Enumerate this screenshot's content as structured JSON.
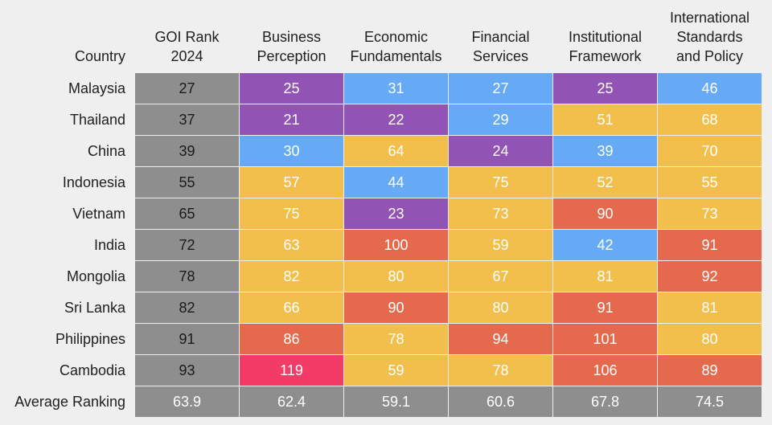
{
  "chart_data": {
    "type": "heatmap",
    "corner_label": "Country",
    "columns": [
      "GOI Rank\n2024",
      "Business\nPerception",
      "Economic\nFundamentals",
      "Financial\nServices",
      "Institutional\nFramework",
      "International\nStandards\nand Policy"
    ],
    "rows": [
      {
        "country": "Malaysia",
        "values": [
          27,
          25,
          31,
          27,
          25,
          46
        ]
      },
      {
        "country": "Thailand",
        "values": [
          37,
          21,
          22,
          29,
          51,
          68
        ]
      },
      {
        "country": "China",
        "values": [
          39,
          30,
          64,
          24,
          39,
          70
        ]
      },
      {
        "country": "Indonesia",
        "values": [
          55,
          57,
          44,
          75,
          52,
          55
        ]
      },
      {
        "country": "Vietnam",
        "values": [
          65,
          75,
          23,
          73,
          90,
          73
        ]
      },
      {
        "country": "India",
        "values": [
          72,
          63,
          100,
          59,
          42,
          91
        ]
      },
      {
        "country": "Mongolia",
        "values": [
          78,
          82,
          80,
          67,
          81,
          92
        ]
      },
      {
        "country": "Sri Lanka",
        "values": [
          82,
          66,
          90,
          80,
          91,
          81
        ]
      },
      {
        "country": "Philippines",
        "values": [
          91,
          86,
          78,
          94,
          101,
          80
        ]
      },
      {
        "country": "Cambodia",
        "values": [
          93,
          119,
          59,
          78,
          106,
          89
        ]
      }
    ],
    "summary_row": {
      "label": "Average Ranking",
      "values": [
        "63.9",
        "62.4",
        "59.1",
        "60.6",
        "67.8",
        "74.5"
      ]
    },
    "color_scale": [
      {
        "max": 25,
        "color": "#9254b4",
        "text": "#ffffff"
      },
      {
        "max": 50,
        "color": "#66aaf5",
        "text": "#ffffff"
      },
      {
        "max": 85,
        "color": "#f2bf4c",
        "text": "#ffffff"
      },
      {
        "max": 110,
        "color": "#e5694c",
        "text": "#ffffff"
      },
      {
        "max": 200,
        "color": "#f23c67",
        "text": "#ffffff"
      }
    ],
    "rank_column_color": "#8e8e8e",
    "rank_column_text": "#1a1a1a",
    "summary_color": "#8e8e8e",
    "summary_text": "#ffffff"
  }
}
